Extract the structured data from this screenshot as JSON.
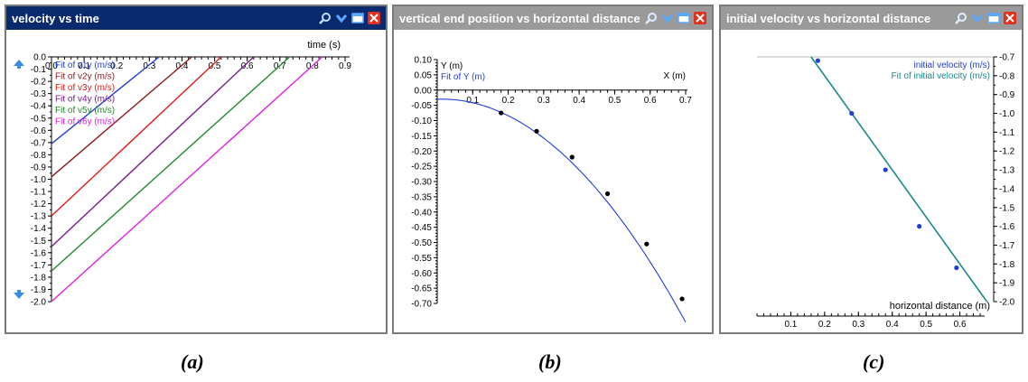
{
  "colors": {
    "titlebar_active": "#0a2a6e",
    "titlebar_inactive": "#9a9a9a",
    "fit_blue": "#1f3fd6",
    "teal": "#1a8a8a"
  },
  "toolbar_icons": [
    "magnifier-icon",
    "chevron-down-icon",
    "window-icon",
    "close-icon"
  ],
  "panels": [
    {
      "title": "velocity vs time"
    },
    {
      "title": "vertical end position vs horizontal distance"
    },
    {
      "title": "initial velocity vs horizontal distance"
    }
  ],
  "captions": [
    "(a)",
    "(b)",
    "(c)"
  ],
  "chart_data": [
    {
      "type": "line",
      "title": "velocity vs time",
      "xlabel": "time (s)",
      "xlim": [
        0.0,
        0.9
      ],
      "xticks": [
        "0.0",
        "0.1",
        "0.2",
        "0.3",
        "0.4",
        "0.5",
        "0.6",
        "0.7",
        "0.8",
        "0.9"
      ],
      "ylim": [
        -2.0,
        0.0
      ],
      "yticks": [
        "0.0",
        "-0.1",
        "-0.2",
        "-0.3",
        "-0.4",
        "-0.5",
        "-0.6",
        "-0.7",
        "-0.8",
        "-0.9",
        "-1.0",
        "-1.1",
        "-1.2",
        "-1.3",
        "-1.4",
        "-1.5",
        "-1.6",
        "-1.7",
        "-1.8",
        "-1.9",
        "-2.0"
      ],
      "legend_position": "top-left",
      "series": [
        {
          "name": "Fit of v1y (m/s)",
          "color": "#1f3fd6",
          "x": [
            0.0,
            0.33
          ],
          "y": [
            -0.71,
            0.0
          ]
        },
        {
          "name": "Fit of v2y (m/s)",
          "color": "#8b1a1a",
          "x": [
            0.0,
            0.43
          ],
          "y": [
            -0.98,
            0.0
          ]
        },
        {
          "name": "Fit of v3y (m/s)",
          "color": "#e01818",
          "x": [
            0.0,
            0.52
          ],
          "y": [
            -1.3,
            0.0
          ]
        },
        {
          "name": "Fit of v4y (m/s)",
          "color": "#7a1a8a",
          "x": [
            0.0,
            0.62
          ],
          "y": [
            -1.55,
            0.0
          ]
        },
        {
          "name": "Fit of v5y (m/s)",
          "color": "#1e8a2a",
          "x": [
            0.0,
            0.73
          ],
          "y": [
            -1.75,
            0.0
          ]
        },
        {
          "name": "Fit of v6y (m/s)",
          "color": "#e020e0",
          "x": [
            0.0,
            0.83
          ],
          "y": [
            -2.0,
            0.0
          ]
        }
      ]
    },
    {
      "type": "scatter",
      "title": "vertical end position vs horizontal distance",
      "xlabel": "X (m)",
      "ylabel": "Y (m)",
      "xlim": [
        0.0,
        0.7
      ],
      "xticks": [
        "0.1",
        "0.2",
        "0.3",
        "0.4",
        "0.5",
        "0.6",
        "0.7"
      ],
      "ylim": [
        -0.7,
        0.1
      ],
      "yticks": [
        "0.10",
        "0.05",
        "0.00",
        "-0.05",
        "-0.10",
        "-0.15",
        "-0.20",
        "-0.25",
        "-0.30",
        "-0.35",
        "-0.40",
        "-0.45",
        "-0.50",
        "-0.55",
        "-0.60",
        "-0.65",
        "-0.70"
      ],
      "legend": [
        "Y (m)",
        "Fit of Y (m)"
      ],
      "points": {
        "x": [
          0.18,
          0.28,
          0.38,
          0.48,
          0.59,
          0.69
        ],
        "y": [
          -0.075,
          -0.135,
          -0.22,
          -0.34,
          -0.505,
          -0.685
        ]
      },
      "fit": {
        "a": -1.55,
        "b": 0.04,
        "c": -0.03,
        "xrange": [
          0.0,
          0.7
        ]
      }
    },
    {
      "type": "scatter",
      "title": "initial velocity vs horizontal distance",
      "xlabel": "horizontal distance (m)",
      "xlim": [
        0.0,
        0.7
      ],
      "xticks": [
        "0.1",
        "0.2",
        "0.3",
        "0.4",
        "0.5",
        "0.6"
      ],
      "ylim": [
        -2.0,
        -0.7
      ],
      "yticks": [
        "-0.7",
        "-0.8",
        "-0.9",
        "-1.0",
        "-1.1",
        "-1.2",
        "-1.3",
        "-1.4",
        "-1.5",
        "-1.6",
        "-1.7",
        "-1.8",
        "-1.9",
        "-2.0"
      ],
      "legend": [
        "initial velocity (m/s)",
        "Fit of initial velocity (m/s)"
      ],
      "legend_position": "top-right",
      "points": {
        "x": [
          0.18,
          0.28,
          0.38,
          0.48,
          0.59
        ],
        "y": [
          -0.72,
          -1.0,
          -1.3,
          -1.6,
          -1.82
        ]
      },
      "fit": {
        "x": [
          0.16,
          0.68
        ],
        "y": [
          -0.7,
          -2.0
        ]
      }
    }
  ]
}
